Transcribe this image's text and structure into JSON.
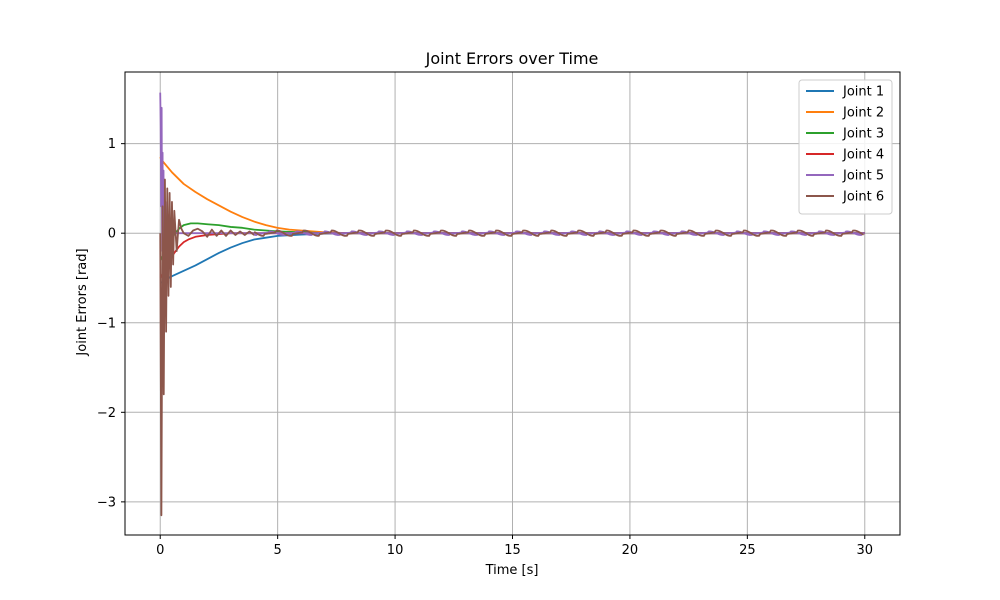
{
  "chart_data": {
    "type": "line",
    "title": "Joint Errors over Time",
    "xlabel": "Time [s]",
    "ylabel": "Joint Errors [rad]",
    "xlim": [
      -1.5,
      31.5
    ],
    "ylim": [
      -3.37,
      1.8
    ],
    "xticks": [
      0,
      5,
      10,
      15,
      20,
      25,
      30
    ],
    "xtick_labels": [
      "0",
      "5",
      "10",
      "15",
      "20",
      "25",
      "30"
    ],
    "yticks": [
      1,
      0,
      -1,
      -2,
      -3
    ],
    "ytick_labels": [
      "1",
      "0",
      "−1",
      "−2",
      "−3"
    ],
    "grid": true,
    "legend_position": "top-right",
    "series": [
      {
        "name": "Joint 1",
        "color": "#1f77b4",
        "x": [
          0,
          0.05,
          0.5,
          1,
          1.5,
          2,
          2.5,
          3,
          3.5,
          4,
          4.5,
          5,
          6,
          7,
          8,
          9,
          10,
          12,
          15,
          20,
          25,
          30
        ],
        "y": [
          -0.55,
          -0.55,
          -0.48,
          -0.42,
          -0.36,
          -0.29,
          -0.22,
          -0.16,
          -0.11,
          -0.07,
          -0.05,
          -0.03,
          -0.015,
          -0.005,
          0,
          0,
          0,
          0,
          0,
          0,
          0,
          0
        ]
      },
      {
        "name": "Joint 2",
        "color": "#ff7f0e",
        "x": [
          0,
          0.05,
          0.5,
          1,
          1.5,
          2,
          2.5,
          3,
          3.5,
          4,
          4.5,
          5,
          5.5,
          6,
          6.5,
          7,
          8,
          10,
          15,
          20,
          25,
          30
        ],
        "y": [
          0.85,
          0.82,
          0.68,
          0.55,
          0.46,
          0.38,
          0.31,
          0.24,
          0.18,
          0.13,
          0.09,
          0.06,
          0.04,
          0.03,
          0.02,
          0.01,
          0,
          0,
          0,
          0,
          0,
          0
        ]
      },
      {
        "name": "Joint 3",
        "color": "#2ca02c",
        "x": [
          0,
          0.2,
          0.5,
          0.8,
          1,
          1.3,
          1.6,
          2,
          2.5,
          3,
          3.5,
          4,
          4.5,
          5,
          6,
          7,
          10,
          15,
          20,
          25,
          30
        ],
        "y": [
          -0.3,
          -0.2,
          -0.05,
          0.05,
          0.09,
          0.11,
          0.11,
          0.1,
          0.09,
          0.07,
          0.06,
          0.04,
          0.03,
          0.02,
          0.01,
          0,
          0,
          0,
          0,
          0,
          0
        ]
      },
      {
        "name": "Joint 4",
        "color": "#d62728",
        "x": [
          0,
          0.2,
          0.4,
          0.6,
          0.8,
          1,
          1.2,
          1.5,
          2,
          2.5,
          3,
          4,
          5,
          10,
          15,
          20,
          25,
          30
        ],
        "y": [
          -0.5,
          -0.4,
          -0.3,
          -0.22,
          -0.15,
          -0.1,
          -0.07,
          -0.04,
          -0.02,
          -0.01,
          0,
          0,
          0,
          0,
          0,
          0,
          0,
          0
        ]
      },
      {
        "name": "Joint 5",
        "color": "#9467bd",
        "x": [
          0,
          0.02,
          0.04,
          0.06,
          0.08,
          0.1,
          0.12,
          0.14,
          0.16,
          0.18,
          0.2,
          0.22,
          0.24,
          0.26,
          0.28,
          0.3,
          0.34,
          0.4,
          0.5,
          1,
          2,
          5,
          10,
          15,
          20,
          25,
          30
        ],
        "y": [
          1.57,
          1.2,
          0.3,
          1.4,
          -0.2,
          0.9,
          -0.3,
          0.7,
          -0.1,
          0.5,
          0.0,
          0.35,
          -0.05,
          0.2,
          0.0,
          0.1,
          0.02,
          0.0,
          0,
          0,
          0,
          0,
          0,
          0,
          0,
          0,
          0
        ]
      },
      {
        "name": "Joint 6",
        "color": "#8c564b",
        "x": [
          0,
          0.05,
          0.1,
          0.15,
          0.2,
          0.25,
          0.3,
          0.35,
          0.4,
          0.45,
          0.5,
          0.55,
          0.6,
          0.7,
          0.8,
          0.9,
          1.0,
          1.2,
          1.4,
          1.6,
          1.8,
          2.0,
          2.2,
          2.4,
          2.6,
          2.8,
          3.0,
          3.2,
          3.4,
          3.6,
          3.8,
          4.0
        ],
        "y": [
          0.0,
          -3.15,
          0.3,
          -1.8,
          0.6,
          -1.1,
          0.5,
          -0.7,
          0.45,
          -0.6,
          0.35,
          -0.35,
          0.25,
          -0.2,
          0.15,
          0.05,
          0.0,
          -0.03,
          0.03,
          0.05,
          0.02,
          -0.04,
          0.04,
          -0.03,
          0.03,
          -0.03,
          0.03,
          -0.02,
          0.02,
          -0.02,
          0.02,
          -0.02
        ]
      }
    ]
  }
}
